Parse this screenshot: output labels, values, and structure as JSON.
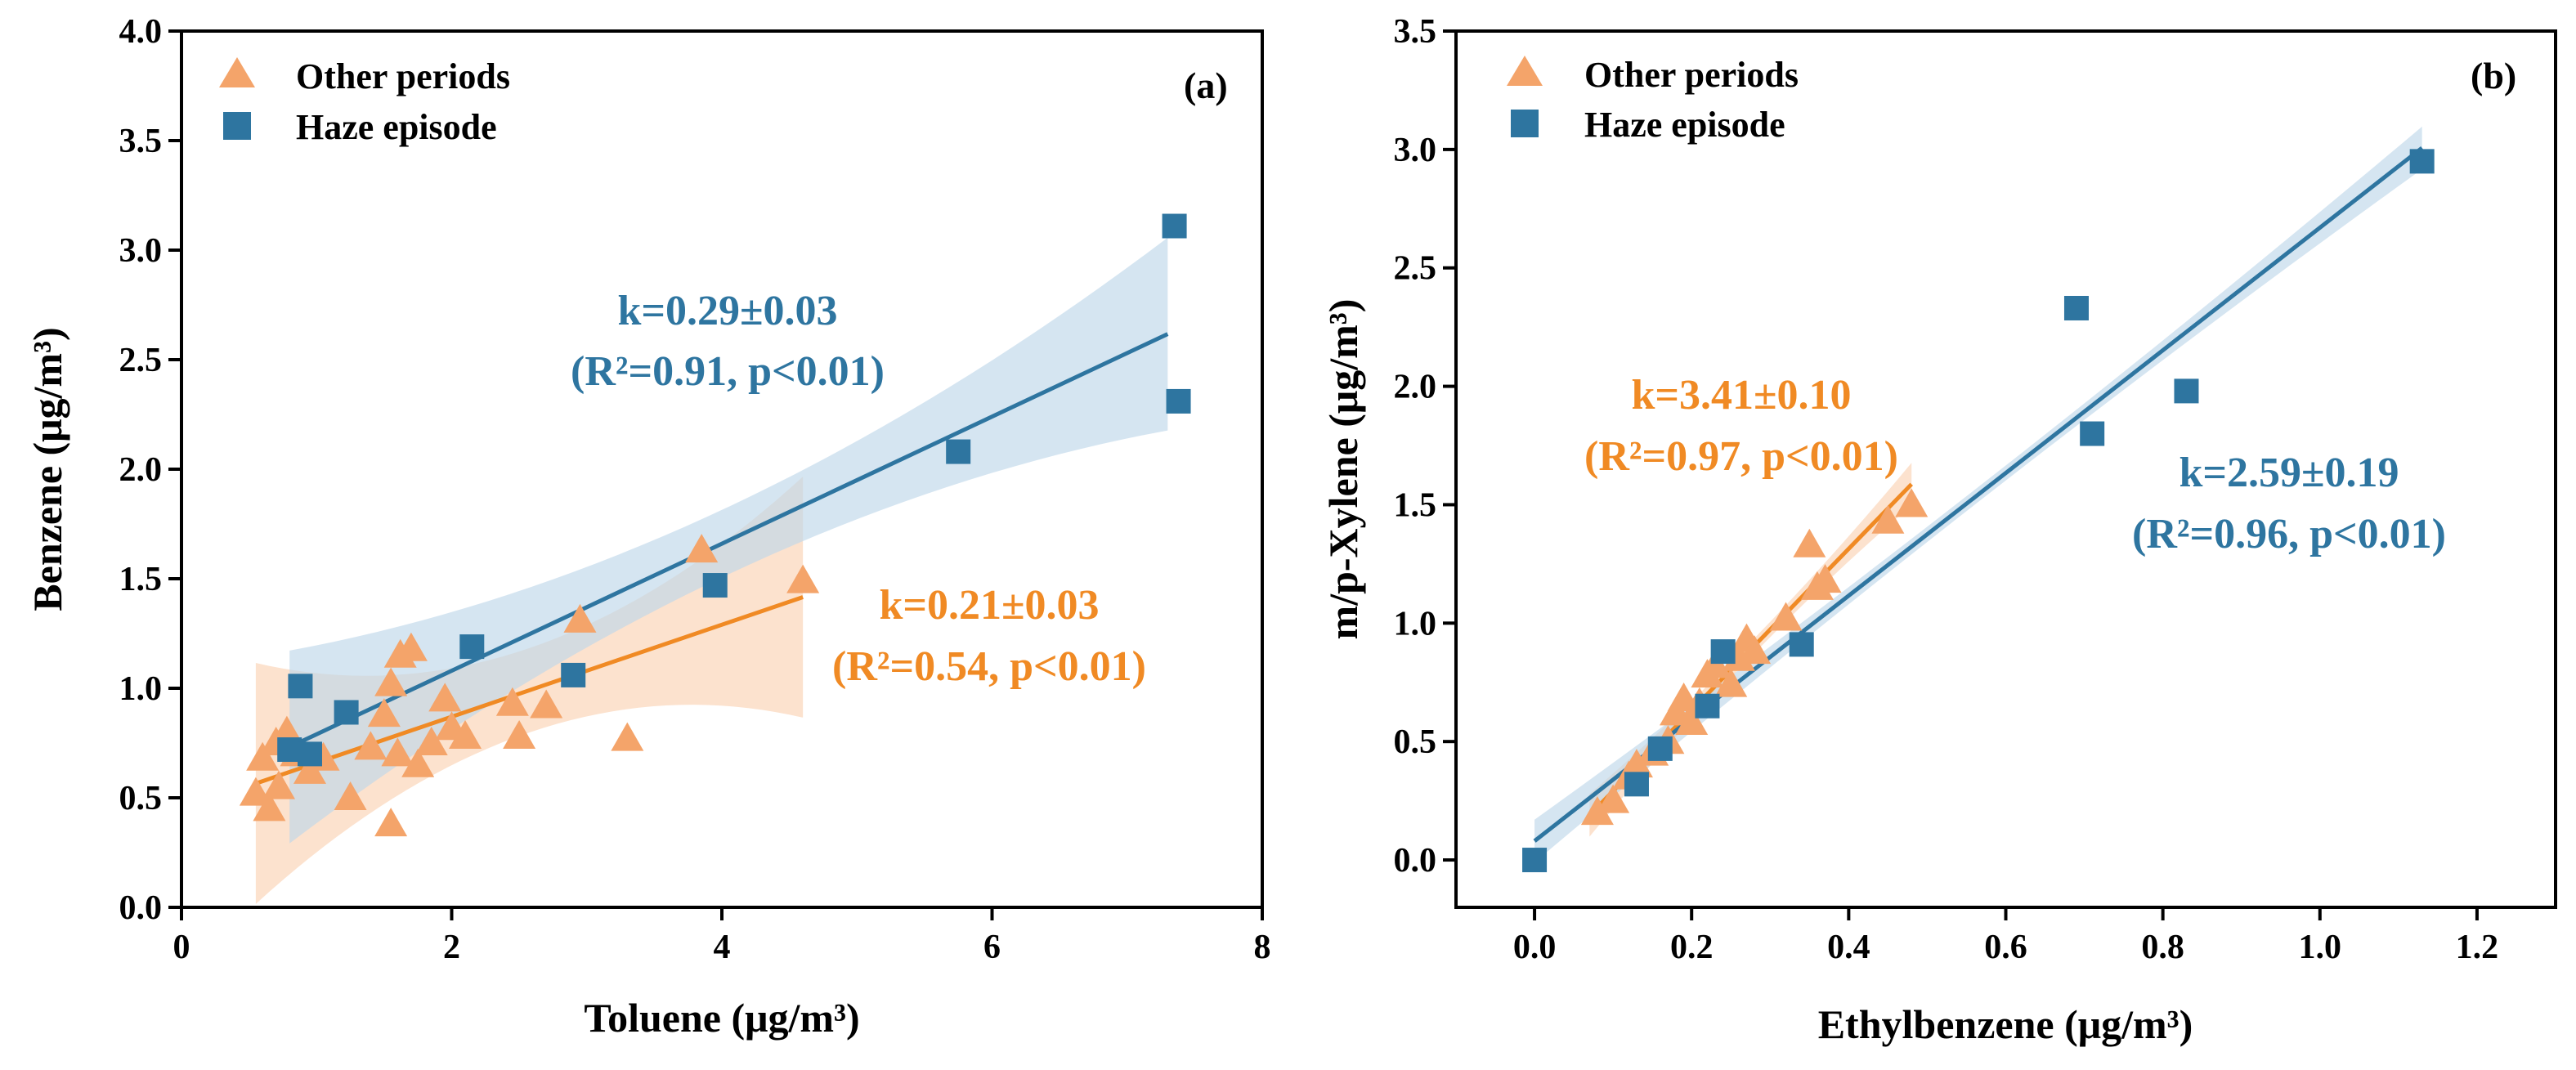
{
  "chart_data": [
    {
      "type": "scatter",
      "panel_label": "(a)",
      "xlabel": "Toluene (μg/m³)",
      "ylabel": "Benzene (μg/m³)",
      "xlim": [
        0,
        8
      ],
      "ylim": [
        0,
        4
      ],
      "x_ticks": [
        "0",
        "2",
        "4",
        "6",
        "8"
      ],
      "y_ticks": [
        "0.0",
        "0.5",
        "1.0",
        "1.5",
        "2.0",
        "2.5",
        "3.0",
        "3.5",
        "4.0"
      ],
      "legend_position": "top-left",
      "series": [
        {
          "name": "Other periods",
          "marker": "triangle",
          "color": "#F4A46A",
          "points": [
            [
              0.55,
              0.52
            ],
            [
              0.6,
              0.68
            ],
            [
              0.65,
              0.45
            ],
            [
              0.7,
              0.75
            ],
            [
              0.72,
              0.55
            ],
            [
              0.78,
              0.8
            ],
            [
              0.85,
              0.7
            ],
            [
              0.95,
              0.62
            ],
            [
              1.05,
              0.68
            ],
            [
              1.25,
              0.5
            ],
            [
              1.4,
              0.73
            ],
            [
              1.5,
              0.88
            ],
            [
              1.55,
              0.38
            ],
            [
              1.55,
              1.02
            ],
            [
              1.6,
              0.7
            ],
            [
              1.62,
              1.15
            ],
            [
              1.7,
              1.18
            ],
            [
              1.75,
              0.65
            ],
            [
              1.85,
              0.75
            ],
            [
              1.95,
              0.95
            ],
            [
              2.0,
              0.82
            ],
            [
              2.1,
              0.78
            ],
            [
              2.45,
              0.93
            ],
            [
              2.5,
              0.78
            ],
            [
              2.7,
              0.92
            ],
            [
              2.95,
              1.31
            ],
            [
              3.3,
              0.77
            ],
            [
              3.85,
              1.63
            ],
            [
              4.6,
              1.49
            ]
          ],
          "fit": {
            "k": 0.21,
            "b": 0.45,
            "x_range": [
              0.55,
              4.6
            ]
          },
          "annotation_line1": "k=0.21±0.03",
          "annotation_line2": "(R²=0.54, p<0.01)"
        },
        {
          "name": "Haze episode",
          "marker": "square",
          "color": "#2E75A0",
          "points": [
            [
              0.8,
              0.72
            ],
            [
              0.88,
              1.01
            ],
            [
              0.95,
              0.7
            ],
            [
              1.22,
              0.89
            ],
            [
              2.15,
              1.19
            ],
            [
              2.9,
              1.06
            ],
            [
              3.95,
              1.47
            ],
            [
              5.75,
              2.08
            ],
            [
              7.35,
              3.11
            ],
            [
              7.38,
              2.31
            ]
          ],
          "fit": {
            "k": 0.29,
            "b": 0.5,
            "x_range": [
              0.8,
              7.3
            ]
          },
          "annotation_line1": "k=0.29±0.03",
          "annotation_line2": "(R²=0.91, p<0.01)"
        }
      ]
    },
    {
      "type": "scatter",
      "panel_label": "(b)",
      "xlabel": "Ethylbenzene (μg/m³)",
      "ylabel": "m/p-Xylene (μg/m³)",
      "xlim": [
        -0.1,
        1.3
      ],
      "ylim": [
        -0.2,
        3.5
      ],
      "x_ticks": [
        "0.0",
        "0.2",
        "0.4",
        "0.6",
        "0.8",
        "1.0",
        "1.2"
      ],
      "y_ticks": [
        "0.0",
        "0.5",
        "1.0",
        "1.5",
        "2.0",
        "2.5",
        "3.0",
        "3.5"
      ],
      "legend_position": "top-left",
      "series": [
        {
          "name": "Other periods",
          "marker": "triangle",
          "color": "#F4A46A",
          "points": [
            [
              0.08,
              0.2
            ],
            [
              0.1,
              0.25
            ],
            [
              0.12,
              0.35
            ],
            [
              0.13,
              0.4
            ],
            [
              0.15,
              0.45
            ],
            [
              0.17,
              0.5
            ],
            [
              0.18,
              0.62
            ],
            [
              0.19,
              0.68
            ],
            [
              0.2,
              0.58
            ],
            [
              0.21,
              0.66
            ],
            [
              0.22,
              0.78
            ],
            [
              0.23,
              0.82
            ],
            [
              0.25,
              0.74
            ],
            [
              0.26,
              0.85
            ],
            [
              0.27,
              0.93
            ],
            [
              0.28,
              0.88
            ],
            [
              0.32,
              1.02
            ],
            [
              0.35,
              1.33
            ],
            [
              0.36,
              1.15
            ],
            [
              0.37,
              1.18
            ],
            [
              0.45,
              1.43
            ],
            [
              0.48,
              1.5
            ]
          ],
          "fit": {
            "k": 3.41,
            "b": -0.05,
            "x_range": [
              0.07,
              0.48
            ]
          },
          "annotation_line1": "k=3.41±0.10",
          "annotation_line2": "(R²=0.97, p<0.01)"
        },
        {
          "name": "Haze episode",
          "marker": "square",
          "color": "#2E75A0",
          "points": [
            [
              0.0,
              0.0
            ],
            [
              0.13,
              0.32
            ],
            [
              0.16,
              0.47
            ],
            [
              0.22,
              0.65
            ],
            [
              0.24,
              0.88
            ],
            [
              0.34,
              0.91
            ],
            [
              0.69,
              2.33
            ],
            [
              0.71,
              1.8
            ],
            [
              0.83,
              1.98
            ],
            [
              1.13,
              2.95
            ]
          ],
          "fit": {
            "k": 2.59,
            "b": 0.08,
            "x_range": [
              0.0,
              1.13
            ]
          },
          "annotation_line1": "k=2.59±0.19",
          "annotation_line2": "(R²=0.96, p<0.01)"
        }
      ]
    }
  ]
}
